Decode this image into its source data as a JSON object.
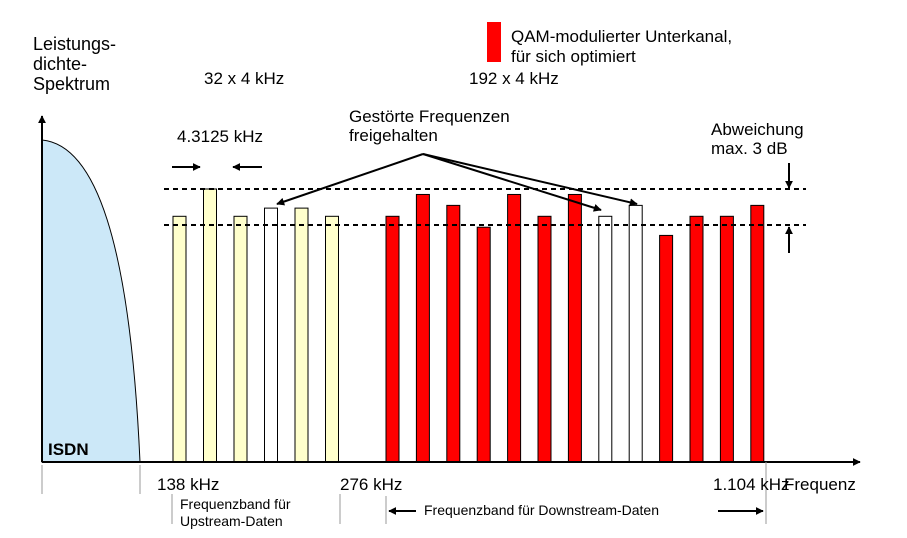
{
  "y_axis_label": [
    "Leistungs-",
    "dichte-",
    "Spektrum"
  ],
  "x_axis_label": "Frequenz",
  "legend": {
    "color": "#ff0000",
    "lines": [
      "QAM-modulierter Unterkanal,",
      "für sich optimiert"
    ]
  },
  "isdn_label": "ISDN",
  "upstream_count": "32 x 4 kHz",
  "downstream_count": "192 x 4 kHz",
  "spacing_label": "4.3125 kHz",
  "disturbed": [
    "Gestörte Frequenzen",
    "freigehalten"
  ],
  "deviation": [
    "Abweichung",
    "max. 3 dB"
  ],
  "freq_ticks": {
    "f138": "138 kHz",
    "f276": "276 kHz",
    "f1104": "1.104 kHz"
  },
  "upstream_band": [
    "Frequenzband für",
    "Upstream-Daten"
  ],
  "downstream_band": "Frequenzband für Downstream-Daten",
  "colors": {
    "isdn_fill": "#cce8f8",
    "upstream_fill": "#ffffcc",
    "downstream_fill": "#ff0000",
    "free_fill": "#ffffff"
  },
  "chart_data": {
    "type": "bar",
    "title": "",
    "xlabel": "Frequenz",
    "ylabel": "Leistungsdichte-Spektrum",
    "upstream_channels": [
      {
        "level": 0.9,
        "state": "used"
      },
      {
        "level": 1.0,
        "state": "used"
      },
      {
        "level": 0.9,
        "state": "used"
      },
      {
        "level": 0.93,
        "state": "free"
      },
      {
        "level": 0.93,
        "state": "used"
      },
      {
        "level": 0.9,
        "state": "used"
      }
    ],
    "downstream_channels": [
      {
        "level": 0.9,
        "state": "used"
      },
      {
        "level": 0.98,
        "state": "used"
      },
      {
        "level": 0.94,
        "state": "used"
      },
      {
        "level": 0.86,
        "state": "used"
      },
      {
        "level": 0.98,
        "state": "used"
      },
      {
        "level": 0.9,
        "state": "used"
      },
      {
        "level": 0.98,
        "state": "used"
      },
      {
        "level": 0.9,
        "state": "free"
      },
      {
        "level": 0.94,
        "state": "free"
      },
      {
        "level": 0.83,
        "state": "used"
      },
      {
        "level": 0.9,
        "state": "used"
      },
      {
        "level": 0.9,
        "state": "used"
      },
      {
        "level": 0.94,
        "state": "used"
      }
    ]
  }
}
